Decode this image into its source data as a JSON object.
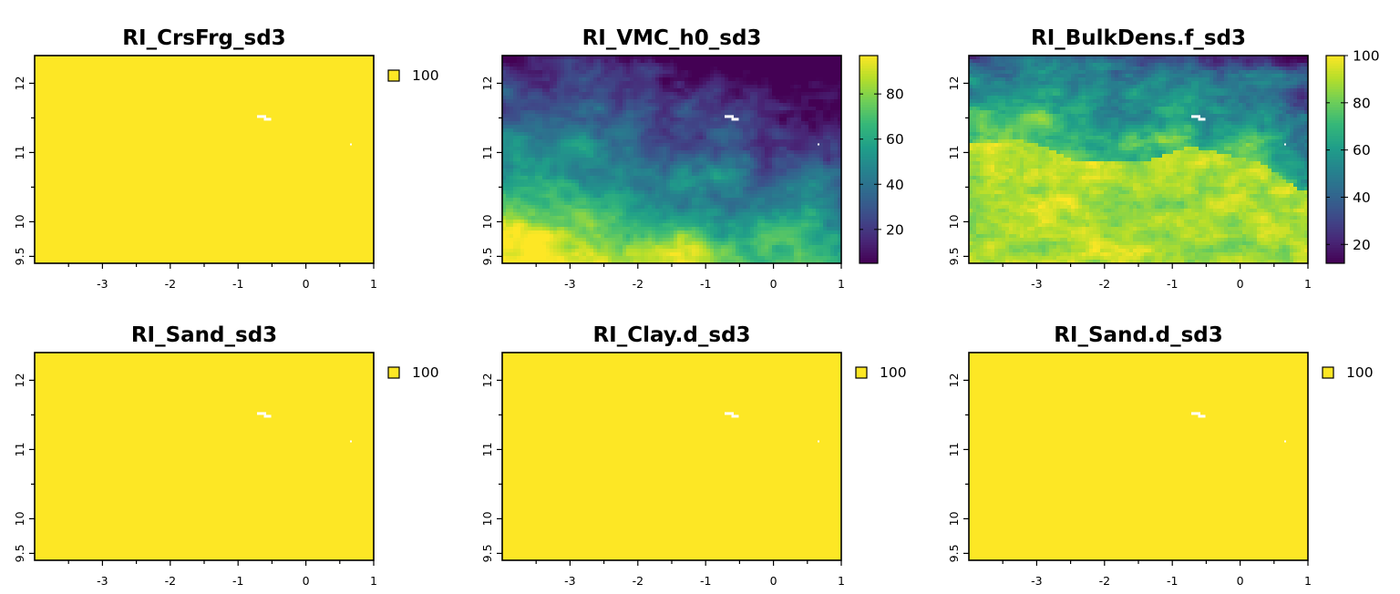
{
  "figure": {
    "colors": {
      "viridis": [
        "#440154",
        "#482878",
        "#3e4a89",
        "#31688e",
        "#26828e",
        "#1f9e89",
        "#35b779",
        "#6ece58",
        "#b5de2b",
        "#fde725"
      ],
      "constant_fill": "#fde725",
      "na": "#ffffff"
    },
    "x_axis": {
      "ticks": [
        -3,
        -2,
        -1,
        0,
        1
      ],
      "tick_labels": [
        "-3",
        "-2",
        "-1",
        "0",
        "1"
      ],
      "range": [
        -4.0,
        1.0
      ]
    },
    "y_axis": {
      "ticks": [
        9.5,
        10,
        11,
        12
      ],
      "tick_labels": [
        "9.5",
        "10",
        "11",
        "12"
      ],
      "range": [
        9.4,
        12.4
      ]
    },
    "panels": [
      {
        "id": "p1",
        "title": "RI_CrsFrg_sd3",
        "mode": "constant",
        "legend": {
          "type": "single",
          "value_label": "100"
        }
      },
      {
        "id": "p2",
        "title": "RI_VMC_h0_sd3",
        "mode": "field",
        "field": "vmc",
        "legend": {
          "type": "colorbar",
          "range": [
            5,
            97
          ],
          "ticks": [
            20,
            40,
            60,
            80
          ],
          "tick_labels": [
            "20",
            "40",
            "60",
            "80"
          ]
        }
      },
      {
        "id": "p3",
        "title": "RI_BulkDens.f_sd3",
        "mode": "field",
        "field": "bulk",
        "legend": {
          "type": "colorbar",
          "range": [
            12,
            100
          ],
          "ticks": [
            20,
            40,
            60,
            80,
            100
          ],
          "tick_labels": [
            "20",
            "40",
            "60",
            "80",
            "100"
          ]
        }
      },
      {
        "id": "p4",
        "title": "RI_Sand_sd3",
        "mode": "constant",
        "legend": {
          "type": "single",
          "value_label": "100"
        }
      },
      {
        "id": "p5",
        "title": "RI_Clay.d_sd3",
        "mode": "constant",
        "legend": {
          "type": "single",
          "value_label": "100"
        }
      },
      {
        "id": "p6",
        "title": "RI_Sand.d_sd3",
        "mode": "constant",
        "legend": {
          "type": "single",
          "value_label": "100"
        }
      }
    ]
  }
}
